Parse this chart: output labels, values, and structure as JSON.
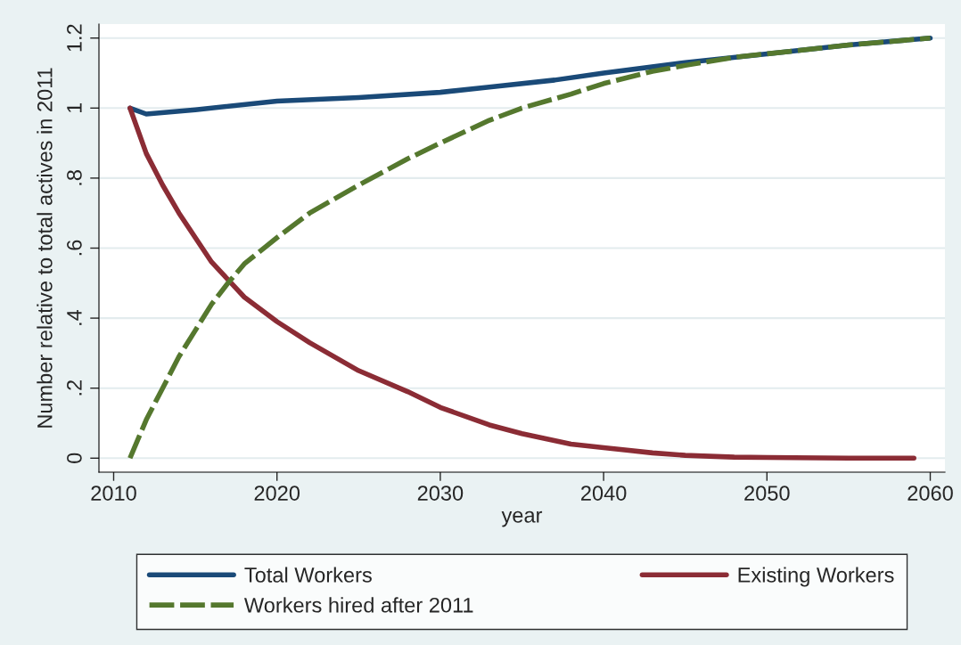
{
  "chart_data": {
    "type": "line",
    "xlabel": "year",
    "ylabel": "Number relative to total actives in 2011",
    "xlim": [
      2009.1,
      2060.9
    ],
    "ylim": [
      -0.04,
      1.24
    ],
    "xticks": [
      2010,
      2020,
      2030,
      2040,
      2050,
      2060
    ],
    "yticks": [
      {
        "value": 0,
        "label": "0"
      },
      {
        "value": 0.2,
        "label": ".2"
      },
      {
        "value": 0.4,
        "label": ".4"
      },
      {
        "value": 0.6,
        "label": ".6"
      },
      {
        "value": 0.8,
        "label": ".8"
      },
      {
        "value": 1,
        "label": "1"
      },
      {
        "value": 1.2,
        "label": "1.2"
      }
    ],
    "grid": "y",
    "legend": "bottom",
    "marker": "none",
    "series": [
      {
        "name": "Total Workers",
        "color": "#1a4a78",
        "line_style": "solid",
        "x": [
          2011,
          2012,
          2015,
          2020,
          2025,
          2030,
          2033,
          2037,
          2040,
          2045,
          2050,
          2055,
          2060
        ],
        "values": [
          1.0,
          0.983,
          0.995,
          1.02,
          1.03,
          1.045,
          1.06,
          1.08,
          1.1,
          1.13,
          1.155,
          1.18,
          1.2
        ]
      },
      {
        "name": "Existing Workers",
        "color": "#8b2c35",
        "line_style": "solid",
        "x": [
          2011,
          2012,
          2013,
          2014,
          2015,
          2016,
          2017,
          2018,
          2020,
          2022,
          2025,
          2028,
          2030,
          2033,
          2035,
          2038,
          2040,
          2043,
          2045,
          2048,
          2050,
          2055,
          2059
        ],
        "values": [
          1.0,
          0.87,
          0.78,
          0.7,
          0.63,
          0.56,
          0.51,
          0.46,
          0.39,
          0.33,
          0.25,
          0.19,
          0.145,
          0.095,
          0.07,
          0.04,
          0.03,
          0.015,
          0.008,
          0.003,
          0.002,
          0,
          0
        ]
      },
      {
        "name": "Workers hired after 2011",
        "color": "#55782e",
        "line_style": "dashed",
        "x": [
          2011,
          2012,
          2013,
          2014,
          2015,
          2016,
          2017,
          2018,
          2020,
          2022,
          2025,
          2028,
          2030,
          2033,
          2035,
          2038,
          2040,
          2043,
          2045,
          2048,
          2050,
          2055,
          2060
        ],
        "values": [
          0,
          0.11,
          0.2,
          0.29,
          0.365,
          0.44,
          0.5,
          0.555,
          0.63,
          0.7,
          0.78,
          0.855,
          0.9,
          0.965,
          1.0,
          1.04,
          1.07,
          1.105,
          1.122,
          1.145,
          1.155,
          1.18,
          1.2
        ]
      }
    ]
  }
}
